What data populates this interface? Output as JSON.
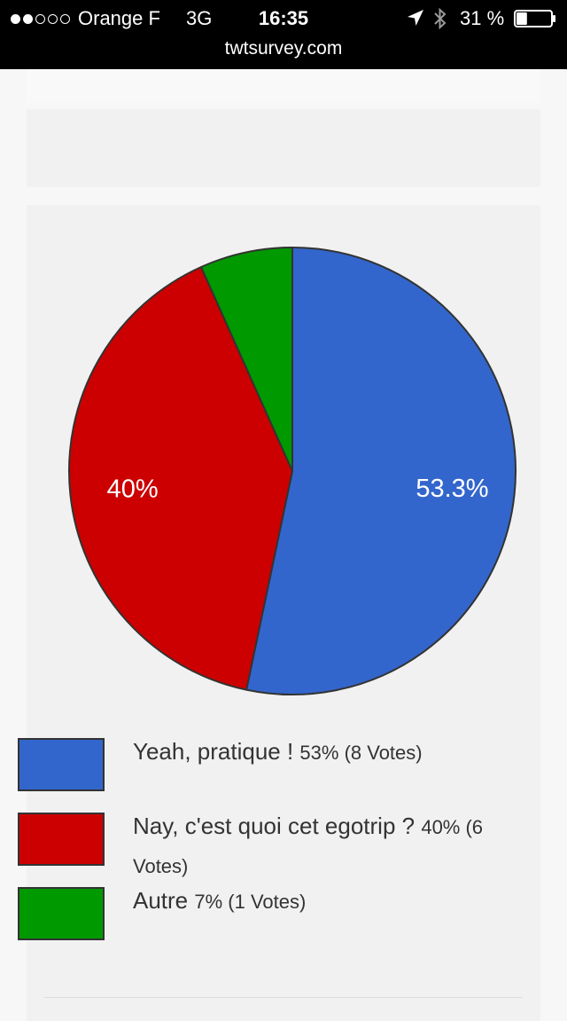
{
  "status_bar": {
    "signal": {
      "filled_dots": 2,
      "total_dots": 5
    },
    "carrier": "Orange F",
    "network": "3G",
    "time": "16:35",
    "battery": "31 %",
    "battery_level": 0.31
  },
  "browser": {
    "url": "twtsurvey.com"
  },
  "chart_data": {
    "type": "pie",
    "slices": [
      {
        "label": "Yeah, pratique !",
        "value": 53.3,
        "slice_label": "53.3%",
        "color": "#3366cc"
      },
      {
        "label": "Nay, c'est quoi cet egotrip ?",
        "value": 40,
        "slice_label": "40%",
        "color": "#cc0000"
      },
      {
        "label": "Autre",
        "value": 6.7,
        "slice_label": "",
        "color": "#009900"
      }
    ],
    "stroke_color": "#333333"
  },
  "legend": {
    "items": [
      {
        "label": "Yeah, pratique !",
        "stats": "53% (8 Votes)",
        "color": "#3366cc"
      },
      {
        "label": "Nay, c'est quoi cet egotrip ?",
        "stats": "40% (6 Votes)",
        "color": "#cc0000"
      },
      {
        "label": "Autre",
        "stats": "7% (1 Votes)",
        "color": "#009900"
      }
    ]
  }
}
